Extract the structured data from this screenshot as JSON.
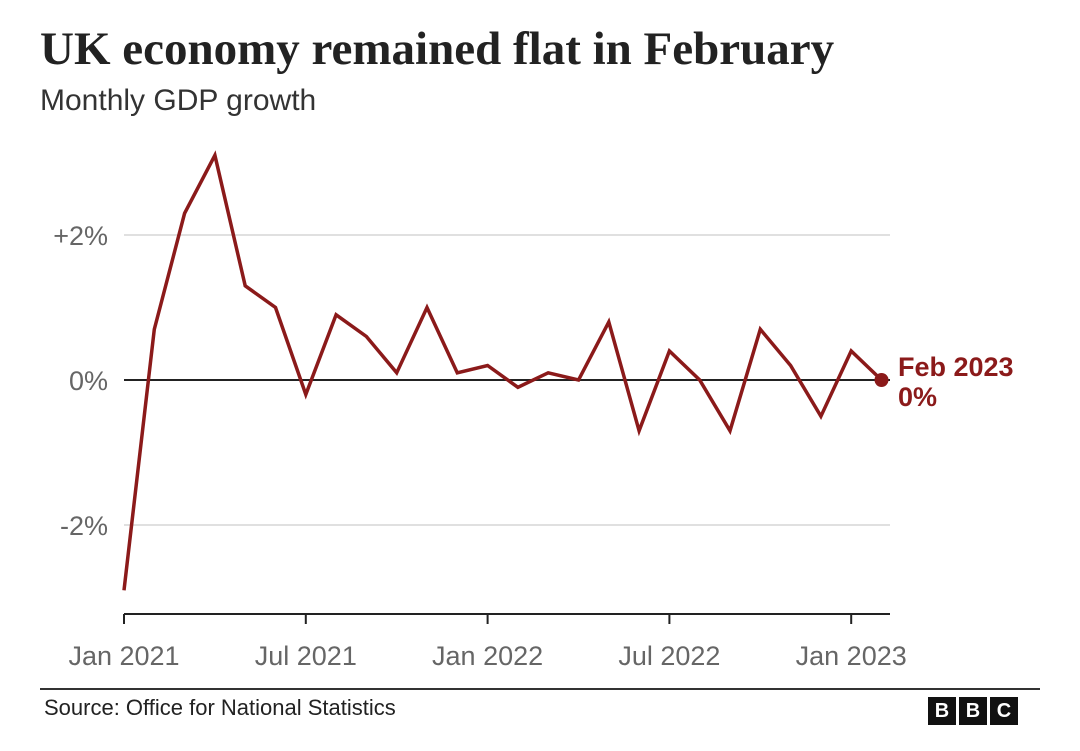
{
  "header": {
    "title": "UK economy remained flat in February",
    "subtitle": "Monthly GDP growth"
  },
  "footer": {
    "source": "Source: Office for National Statistics",
    "logo": [
      "B",
      "B",
      "C"
    ]
  },
  "colors": {
    "series": "#8b1a1a",
    "grid": "#d6d6d6",
    "zero_line": "#222222",
    "tick_text": "#666666"
  },
  "chart_data": {
    "type": "line",
    "x": [
      "Jan 2021",
      "Feb 2021",
      "Mar 2021",
      "Apr 2021",
      "May 2021",
      "Jun 2021",
      "Jul 2021",
      "Aug 2021",
      "Sep 2021",
      "Oct 2021",
      "Nov 2021",
      "Dec 2021",
      "Jan 2022",
      "Feb 2022",
      "Mar 2022",
      "Apr 2022",
      "May 2022",
      "Jun 2022",
      "Jul 2022",
      "Aug 2022",
      "Sep 2022",
      "Oct 2022",
      "Nov 2022",
      "Dec 2022",
      "Jan 2023",
      "Feb 2023"
    ],
    "series": [
      {
        "values": [
          -2.9,
          0.7,
          2.3,
          3.1,
          1.3,
          1.0,
          -0.2,
          0.9,
          0.6,
          0.1,
          1.0,
          0.1,
          0.2,
          -0.1,
          0.1,
          0.0,
          0.8,
          -0.7,
          0.4,
          0.0,
          -0.7,
          0.7,
          0.2,
          -0.5,
          0.4,
          0.0
        ]
      }
    ],
    "ylim": [
      -3.2,
      3.4
    ],
    "yticks": [
      2,
      0,
      -2
    ],
    "ytick_labels": [
      "+2%",
      "0%",
      "-2%"
    ],
    "xtick_labels": [
      "Jan 2021",
      "Jul 2021",
      "Jan 2022",
      "Jul 2022",
      "Jan 2023"
    ],
    "xtick_indices": [
      0,
      6,
      12,
      18,
      24
    ],
    "annotation": {
      "index": 25,
      "line1": "Feb 2023",
      "line2": "0%"
    },
    "grid": true
  }
}
